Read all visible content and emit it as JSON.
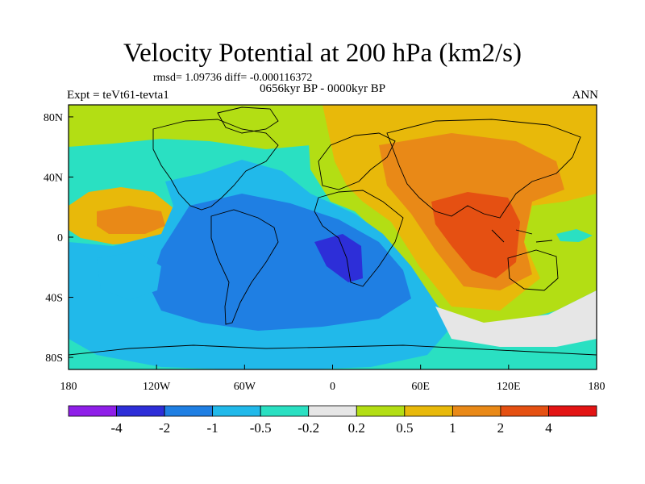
{
  "title": "Velocity Potential at 200 hPa (km2/s)",
  "stats_line": "rmsd= 1.09736 diff= -0.000116372",
  "experiment": "Expt = teVt61-tevta1",
  "period": "0656kyr BP - 0000kyr BP",
  "season": "ANN",
  "lon_ticks": [
    "180",
    "120W",
    "60W",
    "0",
    "60E",
    "120E",
    "180"
  ],
  "lat_ticks": [
    "80N",
    "40N",
    "0",
    "40S",
    "80S"
  ],
  "colorbar": {
    "labels": [
      "-4",
      "-2",
      "-1",
      "-0.5",
      "-0.2",
      "0.2",
      "0.5",
      "1",
      "2",
      "4"
    ],
    "colors": [
      "#8f1fe8",
      "#2d2ed8",
      "#1f7fe3",
      "#21b9ea",
      "#2ae0c2",
      "#e6e6e6",
      "#b3de14",
      "#e8b90a",
      "#e98917",
      "#e55012",
      "#e31414"
    ]
  },
  "map_palette": {
    "neg3": "#2d2ed8",
    "neg2": "#1f7fe3",
    "neg1": "#21b9ea",
    "negs": "#2ae0c2",
    "zero": "#e6e6e6",
    "pos1": "#b3de14",
    "pos2": "#e8b90a",
    "pos3": "#e98917",
    "pos4": "#e55012"
  }
}
